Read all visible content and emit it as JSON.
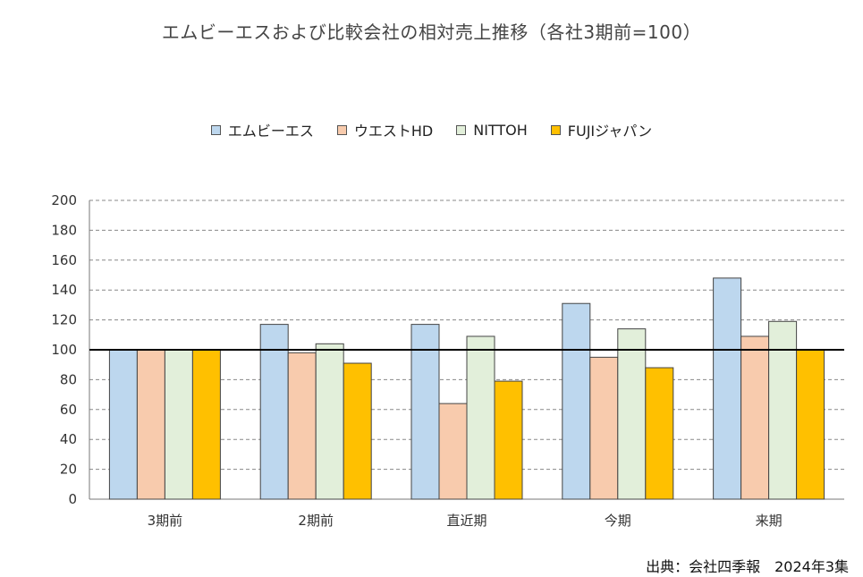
{
  "source": "出典：会社四季報　2024年3集",
  "chart_data": {
    "type": "bar",
    "title": "エムビーエスおよび比較会社の相対売上推移（各社3期前=100）",
    "categories": [
      "3期前",
      "2期前",
      "直近期",
      "今期",
      "来期"
    ],
    "series": [
      {
        "name": "エムビーエス",
        "color": "#bdd7ee",
        "values": [
          100,
          117,
          117,
          131,
          148
        ]
      },
      {
        "name": "ウエストHD",
        "color": "#f8cbad",
        "values": [
          100,
          98,
          64,
          95,
          109
        ]
      },
      {
        "name": "NITTOH",
        "color": "#e2efda",
        "values": [
          100,
          104,
          109,
          114,
          119
        ]
      },
      {
        "name": "FUJIジャパン",
        "color": "#ffc000",
        "values": [
          100,
          91,
          79,
          88,
          100
        ]
      }
    ],
    "ylim": [
      0,
      200
    ],
    "yticks": [
      0,
      20,
      40,
      60,
      80,
      100,
      120,
      140,
      160,
      180,
      200
    ],
    "reference_line": 100,
    "grid": true,
    "legend_position": "top"
  }
}
